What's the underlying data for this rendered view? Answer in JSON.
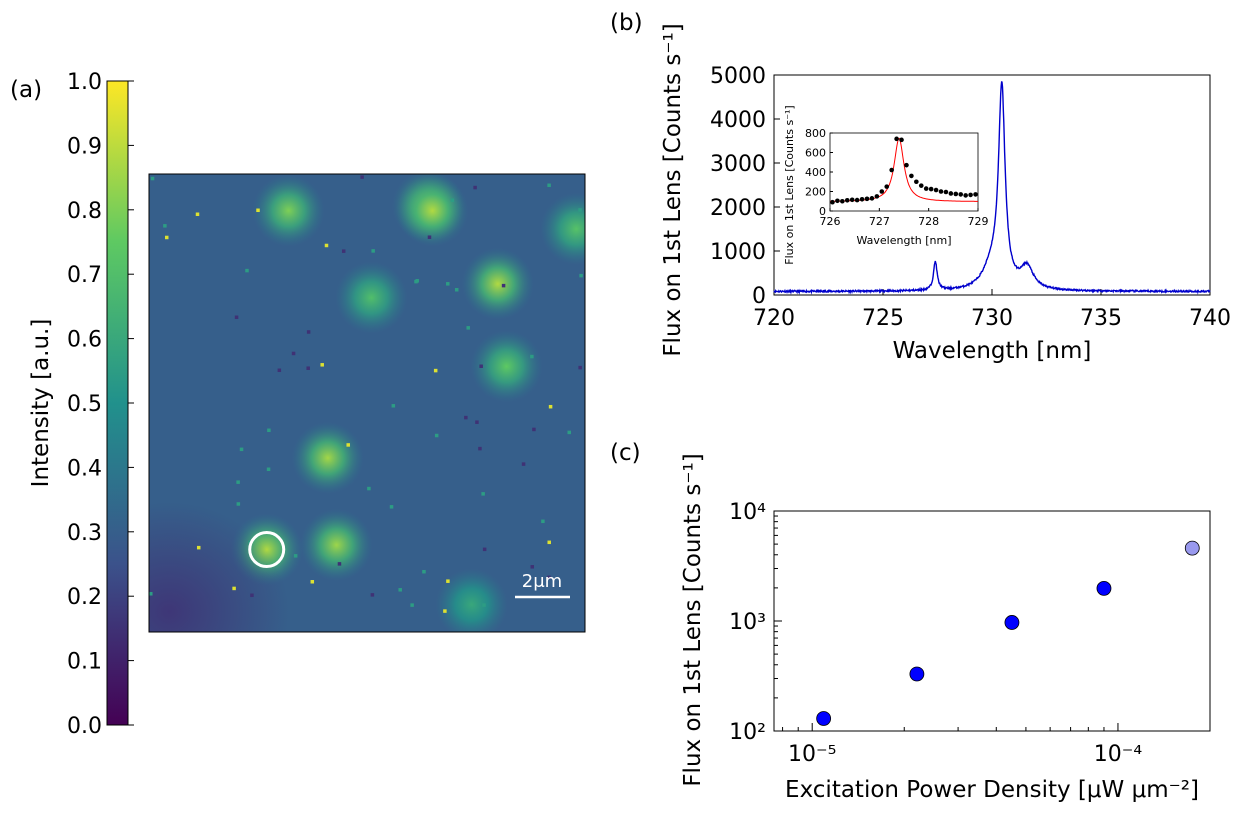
{
  "panel_labels": {
    "a": "(a)",
    "b": "(b)",
    "c": "(c)"
  },
  "chart_data": [
    {
      "panel": "(a)",
      "type": "heatmap",
      "colorbar": {
        "label": "Intensity [a.u.]",
        "range": [
          0.0,
          1.0
        ],
        "ticks": [
          "0.0",
          "0.1",
          "0.2",
          "0.3",
          "0.4",
          "0.5",
          "0.6",
          "0.7",
          "0.8",
          "0.9",
          "1.0"
        ],
        "colormap": [
          "#440154",
          "#3b528b",
          "#21918c",
          "#5ec962",
          "#fde725"
        ]
      },
      "scalebar_label": "2μm",
      "spots": [
        {
          "x": 0.64,
          "y": 0.07,
          "v": 0.9
        },
        {
          "x": 0.65,
          "y": 0.08,
          "v": 0.88
        },
        {
          "x": 0.32,
          "y": 0.08,
          "v": 0.8
        },
        {
          "x": 0.98,
          "y": 0.12,
          "v": 0.72
        },
        {
          "x": 0.8,
          "y": 0.24,
          "v": 0.88
        },
        {
          "x": 0.51,
          "y": 0.27,
          "v": 0.7
        },
        {
          "x": 0.82,
          "y": 0.42,
          "v": 0.75
        },
        {
          "x": 0.41,
          "y": 0.62,
          "v": 0.86
        },
        {
          "x": 0.27,
          "y": 0.82,
          "v": 0.88
        },
        {
          "x": 0.43,
          "y": 0.81,
          "v": 0.85
        },
        {
          "x": 0.74,
          "y": 0.94,
          "v": 0.6
        }
      ],
      "circled_spot": {
        "x": 0.27,
        "y": 0.82
      }
    },
    {
      "panel": "(b)",
      "type": "line",
      "xlabel": "Wavelength [nm]",
      "ylabel": "Flux on 1st Lens [Counts s⁻¹]",
      "xlim": [
        720,
        740
      ],
      "ylim": [
        0,
        5000
      ],
      "xticks": [
        720,
        725,
        730,
        735,
        740
      ],
      "yticks": [
        0,
        1000,
        2000,
        3000,
        4000,
        5000
      ],
      "line_color": "#0000cc",
      "baseline": 80,
      "peaks": [
        {
          "center": 727.4,
          "amplitude": 650,
          "width": 0.1
        },
        {
          "center": 730.45,
          "amplitude": 4450,
          "width": 0.18
        },
        {
          "center": 730.0,
          "amplitude": 500,
          "width": 0.5
        },
        {
          "center": 731.6,
          "amplitude": 500,
          "width": 0.35
        }
      ],
      "inset": {
        "type": "scatter",
        "xlabel": "Wavelength [nm]",
        "ylabel": "Flux on 1st Lens [Counts s⁻¹]",
        "xlim": [
          726,
          729
        ],
        "ylim": [
          0,
          800
        ],
        "xticks": [
          726,
          727,
          728,
          729
        ],
        "yticks": [
          0,
          200,
          400,
          600,
          800
        ],
        "points": [
          [
            726.05,
            90
          ],
          [
            726.15,
            105
          ],
          [
            726.25,
            100
          ],
          [
            726.35,
            110
          ],
          [
            726.45,
            115
          ],
          [
            726.55,
            112
          ],
          [
            726.65,
            120
          ],
          [
            726.75,
            125
          ],
          [
            726.85,
            130
          ],
          [
            726.95,
            150
          ],
          [
            727.05,
            200
          ],
          [
            727.15,
            250
          ],
          [
            727.25,
            420
          ],
          [
            727.35,
            740
          ],
          [
            727.45,
            730
          ],
          [
            727.55,
            470
          ],
          [
            727.65,
            360
          ],
          [
            727.75,
            300
          ],
          [
            727.85,
            260
          ],
          [
            727.95,
            230
          ],
          [
            728.05,
            225
          ],
          [
            728.15,
            215
          ],
          [
            728.25,
            200
          ],
          [
            728.35,
            195
          ],
          [
            728.45,
            180
          ],
          [
            728.55,
            175
          ],
          [
            728.65,
            170
          ],
          [
            728.75,
            160
          ],
          [
            728.85,
            165
          ],
          [
            728.95,
            170
          ]
        ],
        "fit": {
          "center": 727.4,
          "amplitude": 650,
          "width": 0.12,
          "baseline": 95,
          "color": "#ff0000"
        }
      }
    },
    {
      "panel": "(c)",
      "type": "scatter",
      "xlabel": "Excitation Power Density [μW μm⁻²]",
      "ylabel": "Flux on 1st Lens [Counts s⁻¹]",
      "xscale": "log",
      "yscale": "log",
      "xlim": [
        7.5e-06,
        0.0002
      ],
      "ylim": [
        100,
        10000
      ],
      "xticks": [
        1e-05,
        0.0001
      ],
      "xtick_labels": [
        "10⁻⁵",
        "10⁻⁴"
      ],
      "yticks": [
        100,
        1000,
        10000
      ],
      "ytick_labels": [
        "10²",
        "10³",
        "10⁴"
      ],
      "points": [
        {
          "x": 1.09e-05,
          "y": 130,
          "color": "#0000ff"
        },
        {
          "x": 2.2e-05,
          "y": 330,
          "color": "#0000ff"
        },
        {
          "x": 4.5e-05,
          "y": 970,
          "color": "#0000ff"
        },
        {
          "x": 9e-05,
          "y": 1980,
          "color": "#0000ff"
        },
        {
          "x": 0.000175,
          "y": 4600,
          "color": "#9999ee"
        }
      ]
    }
  ]
}
